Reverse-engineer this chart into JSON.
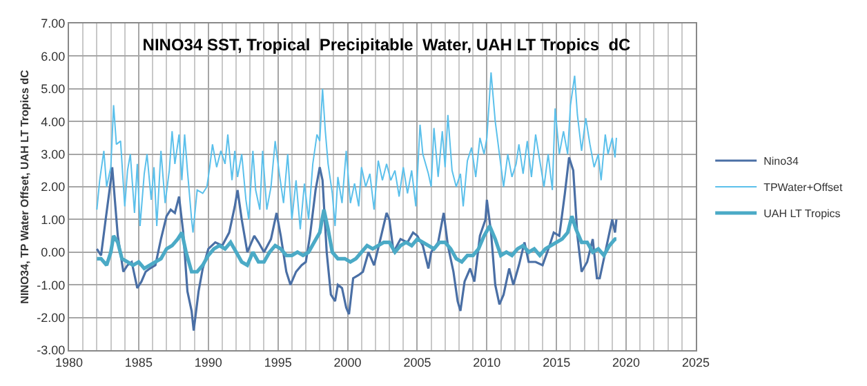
{
  "chart_data": {
    "type": "line",
    "title": "NINO34 SST, Tropical  Precipitable  Water, UAH LT Tropics  dC",
    "ylabel": "NINO34, TP Water Offset, UAH LT Tropics dC",
    "xlim": [
      1980,
      2025
    ],
    "xticks": [
      1980,
      1985,
      1990,
      1995,
      2000,
      2005,
      2010,
      2015,
      2020,
      2025
    ],
    "ylim": [
      -3,
      7
    ],
    "yticks": [
      {
        "value": -3,
        "label": "-3.00"
      },
      {
        "value": -2,
        "label": "-2.00"
      },
      {
        "value": -1,
        "label": "-1.00"
      },
      {
        "value": 0,
        "label": "0.00"
      },
      {
        "value": 1,
        "label": "1.00"
      },
      {
        "value": 2,
        "label": "2.00"
      },
      {
        "value": 3,
        "label": "3.00"
      },
      {
        "value": 4,
        "label": "4.00"
      },
      {
        "value": 5,
        "label": "5.00"
      },
      {
        "value": 6,
        "label": "6.00"
      },
      {
        "value": 7,
        "label": "7.00"
      }
    ],
    "grid": true,
    "legend": "right",
    "marker": "none",
    "line_style": "solid",
    "series": [
      {
        "name": "Nino34",
        "color": "#4a6fa5",
        "x": [
          1982.0,
          1982.3,
          1982.6,
          1983.0,
          1983.1,
          1983.5,
          1983.9,
          1984.2,
          1984.5,
          1984.9,
          1985.2,
          1985.5,
          1985.8,
          1986.2,
          1986.6,
          1987.0,
          1987.3,
          1987.6,
          1987.9,
          1988.2,
          1988.5,
          1988.8,
          1988.95,
          1989.3,
          1989.6,
          1990.0,
          1990.5,
          1991.0,
          1991.5,
          1991.9,
          1992.1,
          1992.4,
          1992.8,
          1993.3,
          1993.6,
          1994.0,
          1994.5,
          1994.9,
          1995.2,
          1995.6,
          1995.9,
          1996.3,
          1996.7,
          1997.0,
          1997.3,
          1997.7,
          1998.0,
          1998.2,
          1998.5,
          1998.8,
          1999.1,
          1999.3,
          1999.6,
          1999.9,
          2000.1,
          2000.4,
          2000.8,
          2001.1,
          2001.5,
          2001.9,
          2002.3,
          2002.8,
          2003.0,
          2003.3,
          2003.8,
          2004.3,
          2004.7,
          2005.0,
          2005.4,
          2005.8,
          2006.0,
          2006.5,
          2006.9,
          2007.2,
          2007.6,
          2007.9,
          2008.1,
          2008.4,
          2008.8,
          2009.1,
          2009.5,
          2009.9,
          2010.0,
          2010.3,
          2010.6,
          2010.9,
          2011.2,
          2011.6,
          2011.9,
          2012.3,
          2012.7,
          2013.0,
          2013.5,
          2014.0,
          2014.5,
          2014.8,
          2015.2,
          2015.6,
          2015.9,
          2016.2,
          2016.5,
          2016.8,
          2017.2,
          2017.6,
          2017.9,
          2018.1,
          2018.5,
          2018.9,
          2019.0,
          2019.2,
          2019.3
        ],
        "values": [
          0.1,
          -0.1,
          0.9,
          2.2,
          2.6,
          0.5,
          -0.6,
          -0.4,
          -0.3,
          -1.1,
          -0.9,
          -0.6,
          -0.5,
          -0.4,
          0.4,
          1.1,
          1.3,
          1.2,
          1.7,
          0.6,
          -1.2,
          -1.8,
          -2.4,
          -1.2,
          -0.5,
          0.1,
          0.3,
          0.2,
          0.6,
          1.4,
          1.9,
          1.0,
          0.0,
          0.5,
          0.3,
          0.0,
          0.4,
          1.2,
          0.5,
          -0.6,
          -1.0,
          -0.6,
          -0.4,
          -0.3,
          0.5,
          1.9,
          2.6,
          2.2,
          0.0,
          -1.3,
          -1.5,
          -1.0,
          -1.1,
          -1.7,
          -1.9,
          -0.8,
          -0.7,
          -0.6,
          0.0,
          -0.4,
          0.3,
          1.2,
          1.0,
          0.0,
          0.4,
          0.3,
          0.6,
          0.5,
          0.2,
          -0.5,
          0.0,
          0.3,
          1.2,
          0.2,
          -0.6,
          -1.5,
          -1.8,
          -0.9,
          -0.5,
          -0.9,
          0.5,
          1.0,
          1.6,
          0.6,
          -1.0,
          -1.6,
          -1.3,
          -0.5,
          -1.0,
          -0.4,
          0.3,
          -0.3,
          -0.3,
          -0.4,
          0.2,
          0.6,
          0.5,
          1.8,
          2.9,
          2.5,
          0.5,
          -0.6,
          -0.3,
          0.4,
          -0.8,
          -0.8,
          0.0,
          0.8,
          1.0,
          0.6,
          1.0
        ]
      },
      {
        "name": "TPWater+Offset",
        "color": "#5bc0eb",
        "x": [
          1982.0,
          1982.2,
          1982.5,
          1982.7,
          1983.0,
          1983.2,
          1983.4,
          1983.7,
          1984.0,
          1984.2,
          1984.4,
          1984.7,
          1984.9,
          1985.1,
          1985.4,
          1985.6,
          1985.9,
          1986.1,
          1986.3,
          1986.6,
          1986.9,
          1987.2,
          1987.4,
          1987.6,
          1987.9,
          1988.1,
          1988.3,
          1988.5,
          1988.8,
          1988.9,
          1989.2,
          1989.6,
          1989.9,
          1990.1,
          1990.3,
          1990.6,
          1990.9,
          1991.2,
          1991.4,
          1991.7,
          1991.9,
          1992.1,
          1992.4,
          1992.7,
          1992.9,
          1993.2,
          1993.4,
          1993.7,
          1993.9,
          1994.2,
          1994.5,
          1994.8,
          1995.1,
          1995.4,
          1995.7,
          1996.0,
          1996.3,
          1996.6,
          1996.9,
          1997.2,
          1997.5,
          1997.8,
          1998.0,
          1998.2,
          1998.4,
          1998.6,
          1998.9,
          1999.1,
          1999.3,
          1999.6,
          1999.9,
          2000.2,
          2000.5,
          2000.8,
          2001.0,
          2001.3,
          2001.6,
          2001.9,
          2002.2,
          2002.5,
          2002.8,
          2003.1,
          2003.4,
          2003.7,
          2004.0,
          2004.3,
          2004.6,
          2004.9,
          2005.2,
          2005.4,
          2005.8,
          2006.0,
          2006.2,
          2006.5,
          2006.8,
          2007.0,
          2007.2,
          2007.5,
          2007.8,
          2008.1,
          2008.3,
          2008.6,
          2008.9,
          2009.2,
          2009.5,
          2009.8,
          2010.0,
          2010.3,
          2010.6,
          2010.9,
          2011.2,
          2011.5,
          2011.8,
          2012.1,
          2012.3,
          2012.6,
          2012.9,
          2013.2,
          2013.5,
          2013.8,
          2014.1,
          2014.4,
          2014.7,
          2014.9,
          2015.2,
          2015.5,
          2015.8,
          2016.0,
          2016.3,
          2016.5,
          2016.8,
          2017.1,
          2017.4,
          2017.7,
          2018.0,
          2018.2,
          2018.5,
          2018.7,
          2019.0,
          2019.2,
          2019.3
        ],
        "values": [
          1.3,
          2.2,
          3.1,
          2.0,
          2.6,
          4.5,
          3.3,
          3.4,
          1.4,
          2.5,
          3.0,
          1.2,
          2.7,
          0.8,
          2.4,
          3.0,
          1.6,
          2.6,
          0.8,
          3.1,
          1.5,
          2.5,
          3.7,
          2.7,
          3.6,
          2.2,
          3.6,
          2.5,
          1.0,
          0.6,
          1.9,
          1.8,
          2.0,
          2.6,
          3.3,
          2.6,
          3.1,
          2.7,
          3.6,
          2.2,
          3.1,
          2.3,
          3.0,
          1.6,
          1.0,
          3.1,
          1.9,
          1.3,
          3.1,
          1.3,
          2.0,
          3.4,
          2.4,
          1.5,
          3.0,
          1.0,
          2.2,
          0.7,
          2.1,
          1.0,
          2.7,
          3.6,
          3.4,
          5.0,
          3.7,
          2.7,
          1.8,
          0.8,
          2.3,
          1.5,
          3.1,
          1.5,
          2.1,
          1.4,
          2.6,
          2.0,
          2.4,
          1.3,
          2.8,
          2.2,
          2.7,
          2.2,
          2.5,
          1.7,
          2.6,
          1.8,
          2.5,
          1.4,
          3.9,
          3.0,
          2.4,
          2.0,
          3.8,
          2.3,
          3.7,
          2.6,
          4.2,
          2.5,
          2.0,
          2.4,
          1.4,
          2.8,
          3.2,
          2.3,
          3.5,
          3.0,
          3.5,
          5.5,
          4.0,
          3.0,
          2.0,
          3.0,
          2.3,
          2.7,
          3.3,
          2.4,
          3.4,
          2.3,
          3.6,
          2.8,
          2.0,
          3.0,
          1.9,
          4.4,
          3.0,
          3.7,
          3.0,
          4.5,
          5.4,
          4.2,
          3.1,
          4.1,
          3.3,
          2.6,
          3.0,
          2.2,
          3.6,
          3.0,
          3.5,
          2.9,
          3.5
        ]
      },
      {
        "name": "UAH LT Tropics",
        "color": "#4baac6",
        "x": [
          1982.0,
          1982.3,
          1982.7,
          1983.0,
          1983.2,
          1983.5,
          1983.8,
          1984.2,
          1984.6,
          1985.0,
          1985.4,
          1985.8,
          1986.2,
          1986.6,
          1987.0,
          1987.4,
          1987.8,
          1988.1,
          1988.4,
          1988.8,
          1989.2,
          1989.6,
          1990.0,
          1990.4,
          1990.8,
          1991.2,
          1991.6,
          1992.0,
          1992.4,
          1992.8,
          1993.2,
          1993.6,
          1994.0,
          1994.4,
          1994.8,
          1995.2,
          1995.6,
          1996.0,
          1996.4,
          1996.8,
          1997.2,
          1997.6,
          1998.0,
          1998.3,
          1998.6,
          1998.9,
          1999.3,
          1999.8,
          2000.2,
          2000.6,
          2001.0,
          2001.4,
          2001.8,
          2002.2,
          2002.6,
          2003.0,
          2003.4,
          2003.8,
          2004.2,
          2004.6,
          2005.0,
          2005.4,
          2005.8,
          2006.2,
          2006.6,
          2007.0,
          2007.4,
          2007.8,
          2008.2,
          2008.6,
          2009.0,
          2009.4,
          2009.8,
          2010.2,
          2010.6,
          2011.0,
          2011.4,
          2011.8,
          2012.2,
          2012.6,
          2013.0,
          2013.4,
          2013.8,
          2014.2,
          2014.6,
          2015.0,
          2015.4,
          2015.8,
          2016.1,
          2016.4,
          2016.8,
          2017.2,
          2017.6,
          2018.0,
          2018.4,
          2018.8,
          2019.2,
          2019.3
        ],
        "values": [
          -0.2,
          -0.2,
          -0.4,
          0.0,
          0.5,
          0.3,
          -0.2,
          -0.3,
          -0.4,
          -0.3,
          -0.5,
          -0.4,
          -0.3,
          -0.2,
          0.1,
          0.2,
          0.4,
          0.6,
          0.0,
          -0.6,
          -0.6,
          -0.4,
          -0.1,
          0.1,
          0.2,
          0.1,
          0.3,
          0.0,
          -0.3,
          -0.4,
          0.0,
          -0.3,
          -0.3,
          0.0,
          0.2,
          0.1,
          -0.1,
          -0.1,
          0.0,
          -0.1,
          0.0,
          0.3,
          0.6,
          1.3,
          0.7,
          0.0,
          -0.2,
          -0.2,
          -0.3,
          -0.2,
          0.0,
          0.2,
          0.1,
          0.2,
          0.3,
          0.3,
          0.0,
          0.2,
          0.3,
          0.2,
          0.4,
          0.3,
          0.2,
          0.1,
          0.3,
          0.3,
          0.1,
          -0.2,
          -0.3,
          -0.1,
          -0.1,
          0.1,
          0.5,
          0.8,
          0.4,
          -0.1,
          0.0,
          -0.1,
          0.1,
          0.2,
          0.0,
          0.1,
          -0.1,
          0.1,
          0.2,
          0.3,
          0.4,
          0.6,
          1.1,
          0.7,
          0.3,
          0.3,
          0.0,
          0.1,
          -0.1,
          0.2,
          0.4,
          0.4
        ]
      }
    ]
  }
}
